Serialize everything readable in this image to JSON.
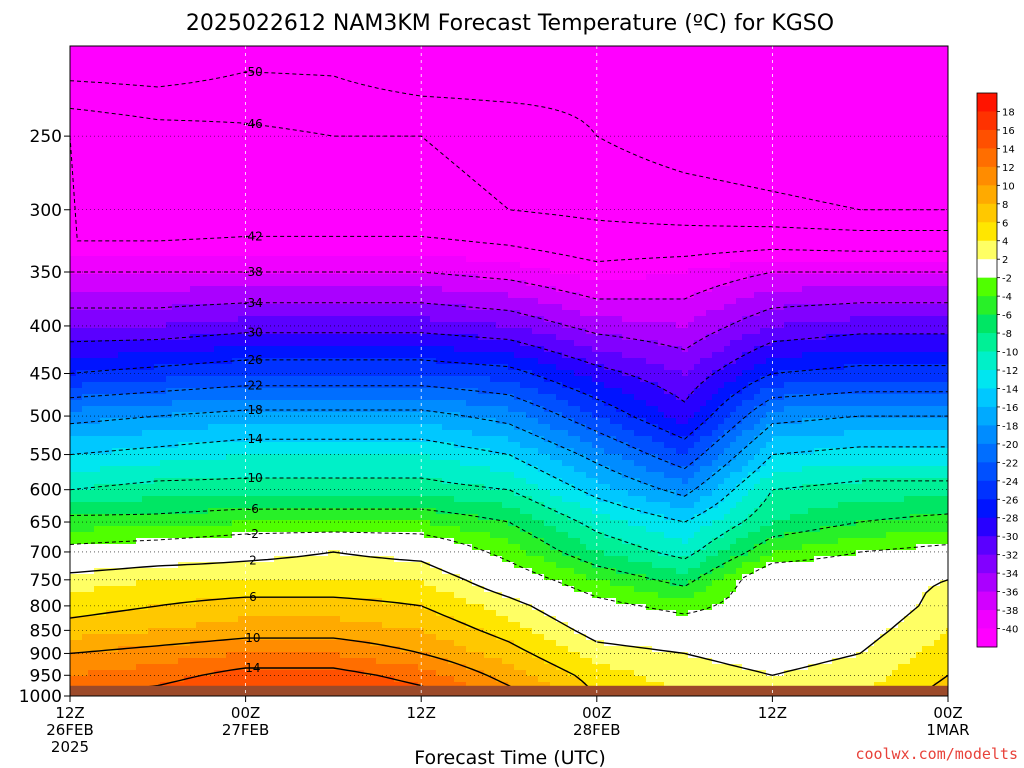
{
  "chart_data": {
    "type": "heatmap",
    "title": "2025022612 NAM3KM Forecast Temperature (ºC) for KGSO",
    "xlabel": "Forecast Time (UTC)",
    "credit": "coolwx.com/modelts",
    "x_ticks": [
      {
        "hours": 0,
        "lines": [
          "12Z",
          "26FEB",
          "2025"
        ]
      },
      {
        "hours": 12,
        "lines": [
          "00Z",
          "27FEB"
        ]
      },
      {
        "hours": 24,
        "lines": [
          "12Z"
        ]
      },
      {
        "hours": 36,
        "lines": [
          "00Z",
          "28FEB"
        ]
      },
      {
        "hours": 48,
        "lines": [
          "12Z"
        ]
      },
      {
        "hours": 60,
        "lines": [
          "00Z",
          "1MAR"
        ]
      }
    ],
    "xlim_hours": [
      0,
      60
    ],
    "y_ticks": [
      250,
      300,
      350,
      400,
      450,
      500,
      550,
      600,
      650,
      700,
      750,
      800,
      850,
      900,
      950,
      1000
    ],
    "ylim_hPa": [
      200,
      1000
    ],
    "ground_hPa": 975,
    "colorbar": {
      "labels": [
        18,
        16,
        14,
        12,
        10,
        8,
        6,
        4,
        2,
        -2,
        -4,
        -6,
        -8,
        -10,
        -12,
        -14,
        -16,
        -18,
        -20,
        -22,
        -24,
        -26,
        -28,
        -30,
        -32,
        -34,
        -36,
        -38,
        -40
      ],
      "colors": [
        "#ff1400",
        "#ff3200",
        "#ff5000",
        "#ff6e00",
        "#ff8c00",
        "#ffaa00",
        "#ffc800",
        "#ffe600",
        "#ffff64",
        "#ffffff",
        "#50ff00",
        "#28f028",
        "#00e664",
        "#00f096",
        "#00f0c8",
        "#00e6f0",
        "#00c8ff",
        "#00aaff",
        "#008cff",
        "#006eff",
        "#0050ff",
        "#0032ff",
        "#0014ff",
        "#2800ff",
        "#5a00ff",
        "#8200ff",
        "#aa00ff",
        "#d200ff",
        "#f000ff",
        "#ff00ff"
      ]
    },
    "temperature_levels": [
      {
        "hPa": 200,
        "T": [
          -55,
          -55,
          -52,
          -52,
          -55,
          -55,
          -52,
          -52,
          -55,
          -55,
          -55
        ]
      },
      {
        "hPa": 250,
        "T": [
          -42,
          -44,
          -45,
          -46,
          -46,
          -47,
          -50,
          -52,
          -53,
          -54,
          -54
        ]
      },
      {
        "hPa": 300,
        "T": [
          -46,
          -46,
          -45,
          -45,
          -45,
          -46,
          -47,
          -48,
          -49,
          -50,
          -50
        ]
      },
      {
        "hPa": 350,
        "T": [
          -38,
          -38,
          -38,
          -38,
          -38,
          -39,
          -41,
          -40,
          -38,
          -38,
          -38
        ]
      },
      {
        "hPa": 400,
        "T": [
          -32,
          -32,
          -31,
          -31,
          -31,
          -32,
          -35,
          -36,
          -32,
          -31,
          -31
        ]
      },
      {
        "hPa": 450,
        "T": [
          -26,
          -25,
          -24,
          -24,
          -24,
          -25,
          -29,
          -32,
          -26,
          -25,
          -25
        ]
      },
      {
        "hPa": 500,
        "T": [
          -19,
          -18,
          -17,
          -17,
          -17,
          -19,
          -24,
          -29,
          -19,
          -18,
          -18
        ]
      },
      {
        "hPa": 550,
        "T": [
          -14,
          -13,
          -12,
          -12,
          -12,
          -14,
          -19,
          -24,
          -14,
          -13,
          -13
        ]
      },
      {
        "hPa": 600,
        "T": [
          -10,
          -9,
          -9,
          -9,
          -9,
          -10,
          -15,
          -19,
          -10,
          -9,
          -9
        ]
      },
      {
        "hPa": 650,
        "T": [
          -5,
          -5,
          -4,
          -4,
          -4,
          -6,
          -11,
          -14,
          -8,
          -6,
          -5
        ]
      },
      {
        "hPa": 700,
        "T": [
          -1,
          0,
          1,
          2,
          1,
          -3,
          -8,
          -11,
          -4,
          -2,
          -1
        ]
      },
      {
        "hPa": 750,
        "T": [
          3,
          4,
          4,
          4,
          4,
          0,
          -4,
          -7,
          1,
          1,
          2
        ]
      },
      {
        "hPa": 800,
        "T": [
          5,
          6,
          7,
          7,
          6,
          3,
          -1,
          -3,
          0,
          0,
          3
        ]
      },
      {
        "hPa": 850,
        "T": [
          7,
          8,
          9,
          9,
          8,
          5,
          1,
          0,
          0,
          1,
          4
        ]
      },
      {
        "hPa": 900,
        "T": [
          10,
          11,
          12,
          12,
          10,
          7,
          3,
          2,
          1,
          2,
          5
        ]
      },
      {
        "hPa": 950,
        "T": [
          12,
          13,
          15,
          15,
          13,
          9,
          5,
          3,
          2,
          3,
          6
        ]
      },
      {
        "hPa": 1000,
        "T": [
          14,
          15,
          17,
          17,
          15,
          11,
          6,
          4,
          2,
          4,
          7
        ]
      }
    ],
    "temperature_hours": [
      0,
      6,
      12,
      18,
      24,
      30,
      36,
      42,
      48,
      54,
      60
    ],
    "contour_labels": [
      -50,
      -46,
      -42,
      -38,
      -34,
      -30,
      -26,
      -22,
      -18,
      -14,
      -10,
      -6,
      -2,
      2,
      6,
      10,
      14
    ],
    "grid": true
  }
}
